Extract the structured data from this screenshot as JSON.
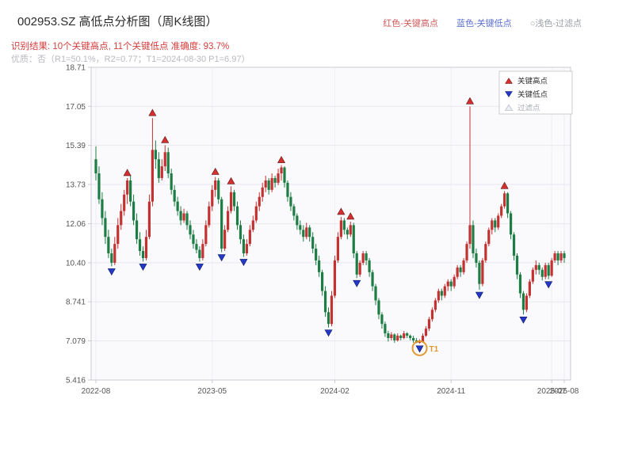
{
  "header": {
    "title": "002953.SZ 高低点分析图（周K线图）",
    "legend": [
      {
        "label": "红色-关键高点"
      },
      {
        "label": "蓝色-关键低点"
      },
      {
        "label": "○浅色-过滤点"
      }
    ],
    "result_line": "识别结果: 10个关键高点, 11个关键低点  准确度: 93.7%",
    "quality_line": "优质：否（R1=50.1%，R2=0.77；T1=2024-08-30 P1=6.97）"
  },
  "colors": {
    "up": "#c43131",
    "down": "#1e7d44",
    "high_marker": "#d62f2f",
    "low_marker": "#2438c8",
    "filter_marker": "#c9cdd6",
    "t1": "#e2982f",
    "grid": "#e7e7ef",
    "axis": "#c9c9d4",
    "tick_text": "#555555",
    "plot_bg": "#fafafc",
    "result_text": "#d43d3d",
    "quality_text": "#b9b9c2"
  },
  "chart_data": {
    "type": "candlestick",
    "title": "002953.SZ 高低点分析图（周K线图）",
    "xlabel": "",
    "ylabel": "",
    "ylim": [
      5.416,
      18.71
    ],
    "grid": true,
    "legend_position": "upper-right-inside",
    "y_ticks": [
      {
        "value": 5.416,
        "label": "5.416"
      },
      {
        "value": 7.079,
        "label": "7.079"
      },
      {
        "value": 8.741,
        "label": "8.741"
      },
      {
        "value": 10.4,
        "label": "10.40"
      },
      {
        "value": 12.06,
        "label": "12.06"
      },
      {
        "value": 13.73,
        "label": "13.73"
      },
      {
        "value": 15.39,
        "label": "15.39"
      },
      {
        "value": 17.05,
        "label": "17.05"
      },
      {
        "value": 18.71,
        "label": "18.71"
      }
    ],
    "x_ticks": [
      {
        "label": "2022-08",
        "index": 0
      },
      {
        "label": "2023-05",
        "index": 37
      },
      {
        "label": "2024-02",
        "index": 76
      },
      {
        "label": "2024-11",
        "index": 113
      },
      {
        "label": "2025-07",
        "index": 145
      },
      {
        "label": "2025-08",
        "index": 149
      }
    ],
    "candles": [
      [
        14.8,
        15.35,
        13.9,
        14.2
      ],
      [
        14.2,
        14.5,
        12.9,
        13.1
      ],
      [
        13.1,
        13.4,
        12.0,
        12.3
      ],
      [
        12.3,
        12.6,
        11.2,
        11.5
      ],
      [
        11.5,
        11.8,
        10.6,
        10.8
      ],
      [
        10.8,
        11.0,
        10.25,
        10.4
      ],
      [
        10.4,
        11.5,
        10.3,
        11.2
      ],
      [
        11.2,
        12.3,
        11.0,
        12.0
      ],
      [
        12.0,
        12.9,
        11.8,
        12.6
      ],
      [
        12.6,
        13.5,
        12.4,
        13.3
      ],
      [
        13.3,
        14.0,
        12.9,
        13.9
      ],
      [
        13.9,
        14.1,
        12.8,
        13.0
      ],
      [
        13.0,
        13.3,
        12.0,
        12.2
      ],
      [
        12.2,
        12.5,
        11.2,
        11.4
      ],
      [
        11.4,
        11.7,
        10.7,
        10.9
      ],
      [
        10.9,
        11.1,
        10.45,
        10.6
      ],
      [
        10.6,
        11.8,
        10.5,
        11.5
      ],
      [
        11.5,
        13.3,
        11.4,
        13.0
      ],
      [
        13.0,
        16.55,
        12.8,
        15.2
      ],
      [
        15.2,
        15.6,
        14.4,
        14.8
      ],
      [
        14.8,
        15.1,
        13.8,
        14.0
      ],
      [
        14.0,
        14.8,
        13.9,
        14.5
      ],
      [
        14.5,
        15.4,
        14.3,
        15.1
      ],
      [
        15.1,
        15.3,
        14.0,
        14.2
      ],
      [
        14.2,
        14.4,
        13.3,
        13.5
      ],
      [
        13.5,
        13.7,
        12.8,
        13.0
      ],
      [
        13.0,
        13.2,
        12.4,
        12.6
      ],
      [
        12.6,
        12.8,
        12.0,
        12.2
      ],
      [
        12.2,
        12.7,
        12.1,
        12.5
      ],
      [
        12.5,
        12.6,
        11.8,
        12.0
      ],
      [
        12.0,
        12.2,
        11.4,
        11.6
      ],
      [
        11.6,
        11.8,
        11.0,
        11.2
      ],
      [
        11.2,
        11.4,
        10.8,
        10.95
      ],
      [
        10.95,
        11.1,
        10.45,
        10.6
      ],
      [
        10.6,
        11.4,
        10.5,
        11.2
      ],
      [
        11.2,
        12.2,
        11.1,
        12.0
      ],
      [
        12.0,
        13.0,
        11.9,
        12.8
      ],
      [
        12.8,
        13.7,
        12.6,
        13.5
      ],
      [
        13.5,
        14.05,
        13.2,
        13.9
      ],
      [
        13.9,
        14.0,
        12.9,
        13.1
      ],
      [
        13.1,
        13.2,
        10.85,
        11.0
      ],
      [
        11.0,
        12.0,
        10.9,
        11.8
      ],
      [
        11.8,
        12.8,
        11.7,
        12.6
      ],
      [
        12.6,
        13.65,
        12.5,
        13.4
      ],
      [
        13.4,
        13.5,
        12.6,
        12.8
      ],
      [
        12.8,
        13.0,
        11.8,
        12.0
      ],
      [
        12.0,
        12.2,
        11.2,
        11.4
      ],
      [
        11.4,
        11.6,
        10.65,
        10.8
      ],
      [
        10.8,
        11.4,
        10.7,
        11.2
      ],
      [
        11.2,
        12.0,
        11.1,
        11.8
      ],
      [
        11.8,
        12.4,
        11.7,
        12.2
      ],
      [
        12.2,
        13.0,
        12.1,
        12.8
      ],
      [
        12.8,
        13.4,
        12.6,
        13.2
      ],
      [
        13.2,
        13.8,
        13.0,
        13.6
      ],
      [
        13.6,
        14.1,
        13.4,
        13.9
      ],
      [
        13.9,
        14.0,
        13.3,
        13.5
      ],
      [
        13.5,
        14.2,
        13.4,
        14.0
      ],
      [
        14.0,
        14.1,
        13.6,
        13.8
      ],
      [
        13.8,
        14.4,
        13.7,
        14.2
      ],
      [
        14.2,
        14.55,
        13.9,
        14.45
      ],
      [
        14.45,
        14.5,
        13.6,
        13.8
      ],
      [
        13.8,
        13.9,
        13.0,
        13.2
      ],
      [
        13.2,
        13.4,
        12.6,
        12.8
      ],
      [
        12.8,
        12.9,
        12.2,
        12.4
      ],
      [
        12.4,
        12.5,
        11.8,
        12.0
      ],
      [
        12.0,
        12.2,
        11.6,
        11.8
      ],
      [
        11.8,
        12.0,
        11.3,
        11.5
      ],
      [
        11.5,
        12.1,
        11.4,
        11.9
      ],
      [
        11.9,
        12.0,
        11.3,
        11.5
      ],
      [
        11.5,
        11.7,
        10.8,
        11.0
      ],
      [
        11.0,
        11.2,
        10.3,
        10.5
      ],
      [
        10.5,
        10.7,
        9.8,
        10.0
      ],
      [
        10.0,
        10.1,
        9.0,
        9.2
      ],
      [
        9.2,
        9.4,
        8.1,
        8.3
      ],
      [
        8.3,
        8.5,
        7.65,
        7.8
      ],
      [
        7.8,
        9.2,
        7.7,
        9.0
      ],
      [
        9.0,
        10.7,
        8.9,
        10.5
      ],
      [
        10.5,
        11.7,
        10.4,
        11.5
      ],
      [
        11.5,
        12.35,
        11.4,
        12.2
      ],
      [
        12.2,
        12.3,
        11.6,
        11.8
      ],
      [
        11.8,
        11.9,
        11.4,
        11.6
      ],
      [
        11.6,
        12.15,
        11.5,
        12.0
      ],
      [
        12.0,
        12.1,
        10.6,
        10.8
      ],
      [
        10.8,
        10.9,
        9.75,
        9.9
      ],
      [
        9.9,
        10.5,
        9.8,
        10.4
      ],
      [
        10.4,
        10.9,
        10.3,
        10.8
      ],
      [
        10.8,
        10.9,
        10.3,
        10.5
      ],
      [
        10.5,
        10.6,
        9.8,
        10.0
      ],
      [
        10.0,
        10.1,
        9.2,
        9.4
      ],
      [
        9.4,
        9.5,
        8.6,
        8.8
      ],
      [
        8.8,
        8.9,
        8.0,
        8.2
      ],
      [
        8.2,
        8.3,
        7.6,
        7.8
      ],
      [
        7.8,
        7.9,
        7.25,
        7.4
      ],
      [
        7.4,
        7.5,
        7.05,
        7.2
      ],
      [
        7.2,
        7.45,
        7.1,
        7.35
      ],
      [
        7.35,
        7.4,
        7.0,
        7.1
      ],
      [
        7.1,
        7.4,
        7.05,
        7.3
      ],
      [
        7.3,
        7.35,
        7.1,
        7.2
      ],
      [
        7.2,
        7.5,
        7.15,
        7.4
      ],
      [
        7.4,
        7.45,
        7.2,
        7.3
      ],
      [
        7.3,
        7.35,
        7.1,
        7.2
      ],
      [
        7.2,
        7.3,
        7.0,
        7.1
      ],
      [
        7.1,
        7.2,
        6.98,
        7.0
      ],
      [
        7.0,
        7.15,
        6.97,
        7.05
      ],
      [
        7.05,
        7.4,
        7.0,
        7.3
      ],
      [
        7.3,
        7.7,
        7.25,
        7.6
      ],
      [
        7.6,
        8.1,
        7.5,
        8.0
      ],
      [
        8.0,
        8.5,
        7.9,
        8.4
      ],
      [
        8.4,
        8.9,
        8.3,
        8.8
      ],
      [
        8.8,
        9.3,
        8.7,
        9.2
      ],
      [
        9.2,
        9.3,
        8.8,
        9.0
      ],
      [
        9.0,
        9.5,
        8.9,
        9.4
      ],
      [
        9.4,
        9.7,
        9.2,
        9.6
      ],
      [
        9.6,
        9.7,
        9.2,
        9.4
      ],
      [
        9.4,
        9.9,
        9.3,
        9.8
      ],
      [
        9.8,
        10.3,
        9.7,
        10.2
      ],
      [
        10.2,
        10.3,
        9.8,
        10.0
      ],
      [
        10.0,
        10.6,
        9.9,
        10.5
      ],
      [
        10.5,
        11.3,
        10.4,
        11.2
      ],
      [
        11.2,
        17.05,
        11.0,
        12.0
      ],
      [
        12.0,
        12.2,
        10.6,
        10.8
      ],
      [
        10.8,
        11.0,
        10.2,
        10.4
      ],
      [
        10.4,
        10.5,
        9.25,
        9.5
      ],
      [
        9.5,
        10.6,
        9.4,
        10.5
      ],
      [
        10.5,
        11.3,
        10.4,
        11.2
      ],
      [
        11.2,
        11.9,
        11.1,
        11.8
      ],
      [
        11.8,
        12.3,
        11.6,
        12.2
      ],
      [
        12.2,
        12.3,
        11.7,
        11.9
      ],
      [
        11.9,
        12.5,
        11.8,
        12.4
      ],
      [
        12.4,
        12.9,
        12.3,
        12.8
      ],
      [
        12.8,
        13.45,
        12.7,
        13.35
      ],
      [
        13.35,
        13.4,
        12.3,
        12.5
      ],
      [
        12.5,
        12.6,
        11.4,
        11.6
      ],
      [
        11.6,
        11.7,
        10.5,
        10.7
      ],
      [
        10.7,
        10.8,
        9.7,
        9.9
      ],
      [
        9.9,
        10.0,
        8.9,
        9.1
      ],
      [
        9.1,
        9.2,
        8.2,
        8.4
      ],
      [
        8.4,
        9.1,
        8.3,
        9.0
      ],
      [
        9.0,
        9.7,
        8.9,
        9.6
      ],
      [
        9.6,
        10.2,
        9.5,
        10.1
      ],
      [
        10.1,
        10.5,
        9.9,
        10.3
      ],
      [
        10.3,
        10.4,
        9.9,
        10.1
      ],
      [
        10.1,
        10.2,
        9.65,
        9.8
      ],
      [
        9.8,
        10.4,
        9.7,
        10.3
      ],
      [
        10.3,
        10.4,
        9.7,
        9.85
      ],
      [
        9.85,
        10.6,
        9.8,
        10.5
      ],
      [
        10.5,
        10.9,
        10.4,
        10.8
      ],
      [
        10.8,
        10.9,
        10.3,
        10.5
      ],
      [
        10.5,
        10.9,
        10.4,
        10.8
      ],
      [
        10.8,
        10.9,
        10.4,
        10.6
      ]
    ],
    "high_markers": [
      10,
      18,
      22,
      38,
      43,
      59,
      78,
      81,
      119,
      130
    ],
    "low_markers": [
      5,
      15,
      33,
      40,
      47,
      74,
      83,
      103,
      122,
      136,
      144
    ],
    "t1": {
      "index": 103,
      "label": "T1",
      "date": "2024-08-30",
      "price": 6.97
    },
    "legend": [
      {
        "label": "关键高点",
        "marker": "up",
        "color": "#d62f2f",
        "text_color": "#333333"
      },
      {
        "label": "关键低点",
        "marker": "down",
        "color": "#2438c8",
        "text_color": "#333333"
      },
      {
        "label": "过滤点",
        "marker": "filter",
        "color": "#c9cdd6",
        "text_color": "#a8adb5"
      }
    ]
  }
}
